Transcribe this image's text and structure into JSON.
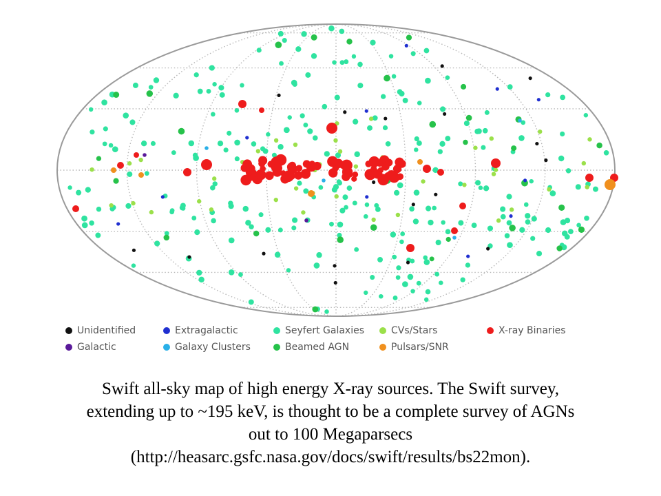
{
  "legend": {
    "items": [
      {
        "key": "unidentified",
        "label": "Unidentified",
        "color": "#111111"
      },
      {
        "key": "extragalactic",
        "label": "Extragalactic",
        "color": "#1f2fd0"
      },
      {
        "key": "seyfert",
        "label": "Seyfert Galaxies",
        "color": "#2fe3a0"
      },
      {
        "key": "cvs",
        "label": "CVs/Stars",
        "color": "#9be04a"
      },
      {
        "key": "xrb",
        "label": "X-ray Binaries",
        "color": "#ee1c1c"
      },
      {
        "key": "galactic",
        "label": "Galactic",
        "color": "#5a1a9a"
      },
      {
        "key": "clusters",
        "label": "Galaxy Clusters",
        "color": "#2ab0e8"
      },
      {
        "key": "beamed",
        "label": "Beamed AGN",
        "color": "#26c24a"
      },
      {
        "key": "pulsars",
        "label": "Pulsars/SNR",
        "color": "#f0901e"
      }
    ]
  },
  "caption": {
    "line1": "Swift all-sky map of high energy X-ray sources. The Swift survey,",
    "line2": "extending up to ~195 keV, is thought to be a complete survey of AGNs",
    "line3": "out to 100 Megaparsecs",
    "line4": "(http://heasarc.gsfc.nasa.gov/docs/swift/results/bs22mon)."
  }
}
